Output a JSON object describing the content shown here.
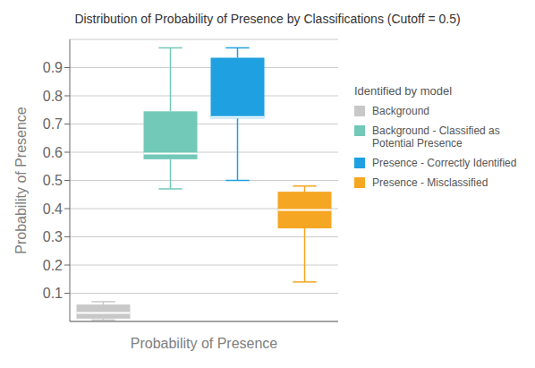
{
  "chart_data": {
    "type": "box",
    "title": "Distribution of Probability of Presence by Classifications (Cutoff = 0.5)",
    "xlabel": "Probability of Presence",
    "ylabel": "Probability of Presence",
    "ylim": [
      0.0,
      1.0
    ],
    "yticks": [
      0.1,
      0.2,
      0.3,
      0.4,
      0.5,
      0.6,
      0.7,
      0.8,
      0.9
    ],
    "grid": true,
    "tick_labels": "y",
    "legend": "right",
    "legend_title": "Identified by model",
    "series": [
      {
        "name": "Background",
        "color": "#c8c8c8",
        "whisker_low": 0.005,
        "q1": 0.01,
        "median": 0.03,
        "q3": 0.06,
        "whisker_high": 0.07
      },
      {
        "name": "Background - Classified as Potential Presence",
        "color": "#72c9b8",
        "whisker_low": 0.47,
        "q1": 0.575,
        "median": 0.595,
        "q3": 0.745,
        "whisker_high": 0.97
      },
      {
        "name": "Presence - Correctly Identified",
        "color": "#1fa0e0",
        "whisker_low": 0.5,
        "q1": 0.72,
        "median": 0.725,
        "q3": 0.935,
        "whisker_high": 0.97
      },
      {
        "name": "Presence - Misclassified",
        "color": "#f5a623",
        "whisker_low": 0.14,
        "q1": 0.33,
        "median": 0.395,
        "q3": 0.46,
        "whisker_high": 0.48
      }
    ]
  }
}
